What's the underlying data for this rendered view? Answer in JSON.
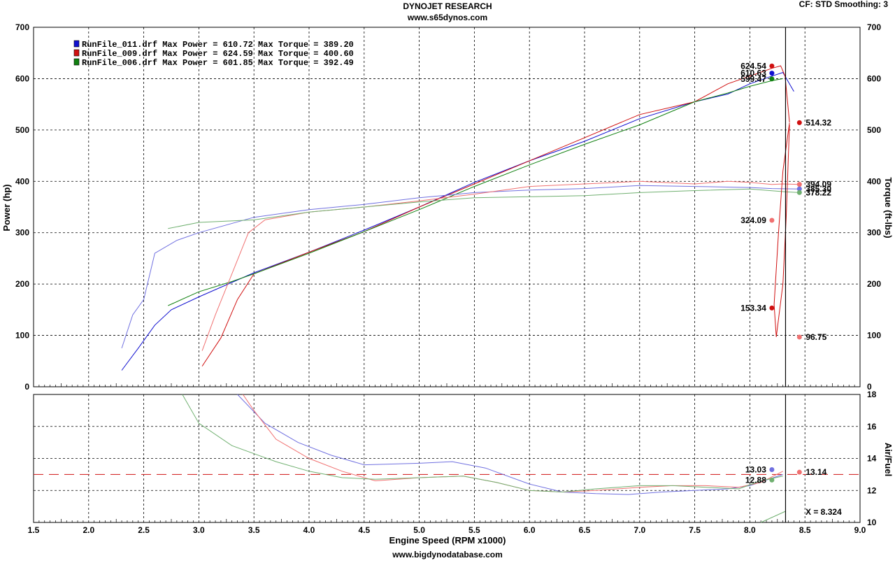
{
  "header": {
    "title": "DYNOJET RESEARCH",
    "subtitle": "www.s65dynos.com",
    "settings": "CF: STD  Smoothing: 3",
    "footer": "www.bigdynodatabase.com"
  },
  "legend": [
    {
      "text": "RunFile_011.drf Max Power = 610.72    Max Torque = 389.20",
      "color": "#1010d0"
    },
    {
      "text": "RunFile_009.drf Max Power = 624.59    Max Torque = 400.60",
      "color": "#d01010"
    },
    {
      "text": "RunFile_006.drf Max Power = 601.85    Max Torque = 392.49",
      "color": "#108010"
    }
  ],
  "chart_data": [
    {
      "type": "line",
      "xlabel": "Engine Speed (RPM x1000)",
      "ylabel": "Power (hp)",
      "y2label": "Torque (ft-lbs)",
      "xlim": [
        1.5,
        9.0
      ],
      "ylim": [
        0,
        700
      ],
      "y2lim": [
        0,
        700
      ],
      "xticks": [
        "1.5",
        "2.0",
        "2.5",
        "3.0",
        "3.5",
        "4.0",
        "4.5",
        "5.0",
        "5.5",
        "6.0",
        "6.5",
        "7.0",
        "7.5",
        "8.0",
        "8.5",
        "9.0"
      ],
      "yticks": [
        "0",
        "100",
        "200",
        "300",
        "400",
        "500",
        "600",
        "700"
      ],
      "grid": true,
      "cursor_x": 8.324,
      "series": [
        {
          "name": "RunFile_011.drf Power",
          "color": "#1010d0",
          "x": [
            2.3,
            2.45,
            2.6,
            2.75,
            3.0,
            3.5,
            4.0,
            4.5,
            5.0,
            5.5,
            6.0,
            6.5,
            7.0,
            7.5,
            7.8,
            8.0,
            8.2,
            8.3,
            8.4
          ],
          "y": [
            32,
            75,
            120,
            150,
            175,
            222,
            262,
            305,
            350,
            398,
            440,
            478,
            522,
            555,
            570,
            590,
            605,
            612,
            575
          ]
        },
        {
          "name": "RunFile_009.drf Power",
          "color": "#d01010",
          "x": [
            3.03,
            3.2,
            3.35,
            3.5,
            4.0,
            4.5,
            5.0,
            5.5,
            6.0,
            6.5,
            7.0,
            7.5,
            7.8,
            8.0,
            8.2,
            8.28,
            8.32,
            8.36
          ],
          "y": [
            40,
            95,
            170,
            220,
            262,
            302,
            350,
            395,
            440,
            485,
            530,
            555,
            590,
            605,
            620,
            625,
            605,
            515
          ]
        },
        {
          "name": "RunFile_006.drf Power",
          "color": "#108010",
          "x": [
            2.72,
            3.0,
            3.3,
            3.5,
            4.0,
            4.5,
            5.0,
            5.5,
            6.0,
            6.5,
            7.0,
            7.5,
            7.8,
            8.0,
            8.2,
            8.3
          ],
          "y": [
            158,
            185,
            205,
            220,
            260,
            302,
            345,
            390,
            432,
            472,
            510,
            555,
            572,
            585,
            596,
            600
          ]
        },
        {
          "name": "RunFile_011.drf Torque",
          "color": "#7070e0",
          "x": [
            2.3,
            2.4,
            2.5,
            2.6,
            2.8,
            3.0,
            3.5,
            4.0,
            4.5,
            5.0,
            5.5,
            6.0,
            6.5,
            7.0,
            7.5,
            8.0,
            8.2,
            8.45
          ],
          "y": [
            75,
            140,
            170,
            260,
            285,
            300,
            330,
            345,
            355,
            368,
            378,
            383,
            386,
            392,
            390,
            388,
            386,
            385
          ]
        },
        {
          "name": "RunFile_009.drf Torque",
          "color": "#f07070",
          "x": [
            3.03,
            3.15,
            3.3,
            3.45,
            3.6,
            4.0,
            4.5,
            5.0,
            5.5,
            6.0,
            6.5,
            7.0,
            7.5,
            7.8,
            8.0,
            8.2,
            8.3,
            8.45
          ],
          "y": [
            70,
            140,
            220,
            300,
            325,
            340,
            350,
            362,
            375,
            390,
            395,
            400,
            395,
            400,
            398,
            394,
            395,
            394
          ]
        },
        {
          "name": "RunFile_006.drf Torque",
          "color": "#70b070",
          "x": [
            2.72,
            3.0,
            3.5,
            4.0,
            4.5,
            5.0,
            5.5,
            6.0,
            6.5,
            7.0,
            7.5,
            8.0,
            8.3,
            8.45
          ],
          "y": [
            308,
            320,
            325,
            340,
            350,
            360,
            368,
            370,
            372,
            378,
            382,
            385,
            380,
            378
          ]
        }
      ],
      "markers": [
        {
          "label": "624.54",
          "x": 8.2,
          "y": 624.54,
          "color": "#d01010",
          "side": "left"
        },
        {
          "label": "610.63",
          "x": 8.2,
          "y": 610.63,
          "color": "#1010d0",
          "side": "left"
        },
        {
          "label": "599.47",
          "x": 8.2,
          "y": 599.47,
          "color": "#108010",
          "side": "left"
        },
        {
          "label": "514.32",
          "x": 8.45,
          "y": 514.32,
          "color": "#d01010",
          "side": "right"
        },
        {
          "label": "394.09",
          "x": 8.45,
          "y": 394.09,
          "color": "#f07070",
          "side": "right"
        },
        {
          "label": "385.30",
          "x": 8.45,
          "y": 385.3,
          "color": "#7070e0",
          "side": "right"
        },
        {
          "label": "378.22",
          "x": 8.45,
          "y": 378.22,
          "color": "#70b070",
          "side": "right"
        },
        {
          "label": "324.09",
          "x": 8.2,
          "y": 324.09,
          "color": "#f07070",
          "side": "left"
        },
        {
          "label": "153.34",
          "x": 8.2,
          "y": 153.34,
          "color": "#d01010",
          "side": "left"
        },
        {
          "label": "96.75",
          "x": 8.45,
          "y": 96.75,
          "color": "#f07070",
          "side": "right"
        }
      ]
    },
    {
      "type": "line",
      "xlabel": "Engine Speed (RPM x1000)",
      "ylabel": "Air/Fuel",
      "xlim": [
        1.5,
        9.0
      ],
      "ylim": [
        10,
        18
      ],
      "yticks": [
        "10",
        "12",
        "14",
        "16",
        "18"
      ],
      "grid": true,
      "reference_line": 13.0,
      "series": [
        {
          "name": "RunFile_011.drf Air/Fuel",
          "color": "#7070e0",
          "x": [
            3.35,
            3.6,
            3.9,
            4.2,
            4.5,
            5.0,
            5.3,
            5.6,
            6.0,
            6.3,
            6.6,
            6.9,
            7.2,
            7.5,
            7.8,
            8.0,
            8.3
          ],
          "y": [
            18,
            16.2,
            15,
            14.2,
            13.6,
            13.7,
            13.8,
            13.4,
            12.4,
            11.9,
            11.8,
            11.75,
            11.9,
            12,
            12.1,
            12.3,
            13.0
          ]
        },
        {
          "name": "RunFile_009.drf Air/Fuel",
          "color": "#f07070",
          "x": [
            3.4,
            3.5,
            3.7,
            4.0,
            4.3,
            4.6,
            5.0,
            5.4,
            5.7,
            6.0,
            6.3,
            6.6,
            7.0,
            7.3,
            7.6,
            7.9,
            8.1,
            8.3
          ],
          "y": [
            18,
            17,
            15.2,
            14,
            13.2,
            12.6,
            12.8,
            12.9,
            12.5,
            12,
            11.9,
            12,
            12.2,
            12.3,
            12.3,
            12.2,
            12.5,
            13.2
          ]
        },
        {
          "name": "RunFile_006.drf Air/Fuel",
          "color": "#70b070",
          "x": [
            2.85,
            3.0,
            3.3,
            3.7,
            4.0,
            4.3,
            4.6,
            5.0,
            5.4,
            5.7,
            6.0,
            6.3,
            6.6,
            7.0,
            7.3,
            7.6,
            7.9,
            8.1,
            8.3
          ],
          "y": [
            18,
            16.2,
            14.8,
            13.8,
            13.2,
            12.8,
            12.7,
            12.8,
            12.9,
            12.5,
            12,
            11.9,
            12.1,
            12.3,
            12.3,
            12.2,
            12.1,
            12.6,
            12.9
          ]
        },
        {
          "name": "X cursor",
          "color": "#70b070",
          "x": [
            8.1,
            8.324
          ],
          "y": [
            10,
            10.7
          ]
        }
      ],
      "markers": [
        {
          "label": "13.03",
          "x": 8.2,
          "y": 13.3,
          "color": "#7070e0",
          "side": "left"
        },
        {
          "label": "12.88",
          "x": 8.2,
          "y": 12.65,
          "color": "#70b070",
          "side": "left"
        },
        {
          "label": "13.14",
          "x": 8.45,
          "y": 13.14,
          "color": "#f07070",
          "side": "right"
        }
      ],
      "cursor_label": "X = 8.324"
    }
  ]
}
